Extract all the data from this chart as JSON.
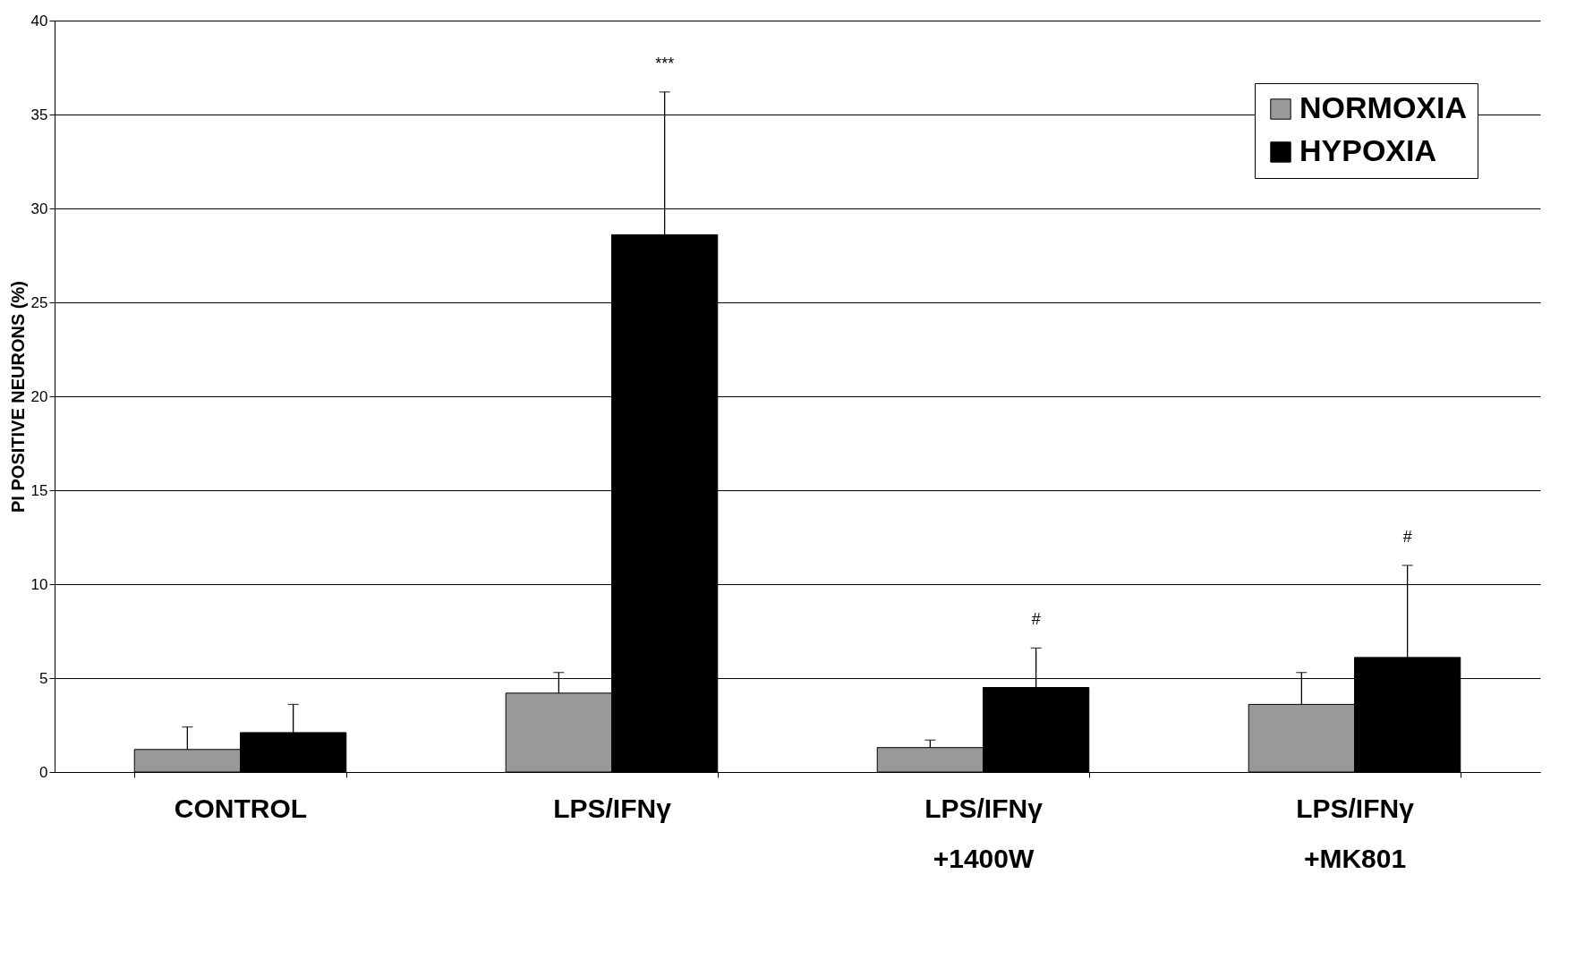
{
  "chart_data": {
    "type": "bar",
    "ylabel": "PI POSITIVE NEURONS (%)",
    "categories": [
      "CONTROL",
      "LPS/IFNγ",
      "LPS/IFNγ +1400W",
      "LPS/IFNγ +MK801"
    ],
    "series": [
      {
        "name": "NORMOXIA",
        "color": "#999999",
        "values": [
          1.2,
          4.2,
          1.3,
          3.6
        ],
        "errors": [
          [
            1.2,
            2.4
          ],
          [
            4.2,
            5.3
          ],
          [
            1.3,
            1.7
          ],
          [
            3.6,
            5.3
          ]
        ]
      },
      {
        "name": "HYPOXIA",
        "color": "#000000",
        "values": [
          2.1,
          28.6,
          4.5,
          6.1
        ],
        "errors": [
          [
            2.1,
            3.6
          ],
          [
            28.6,
            36.2
          ],
          [
            4.5,
            6.6
          ],
          [
            6.1,
            11.0
          ]
        ]
      }
    ],
    "ylim": [
      0,
      40
    ],
    "yticks": [
      0,
      5,
      10,
      15,
      20,
      25,
      30,
      35,
      40
    ],
    "grid": "y",
    "legend": "top right",
    "annotations": [
      "***",
      "#",
      "#"
    ]
  }
}
